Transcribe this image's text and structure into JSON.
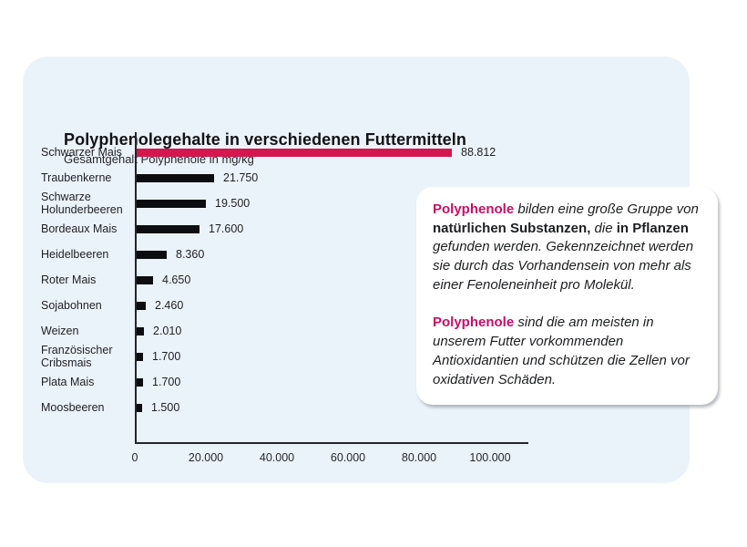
{
  "chart_data": {
    "type": "bar",
    "orientation": "horizontal",
    "title": "Polyphenolegehalte in verschiedenen Futtermitteln",
    "subtitle": "Gesamtgehalt Polyphenole in mg/kg",
    "categories": [
      "Schwarzer Mais",
      "Traubenkerne",
      "Schwarze Holunderbeeren",
      "Bordeaux Mais",
      "Heidelbeeren",
      "Roter Mais",
      "Sojabohnen",
      "Weizen",
      "Französischer Cribsmais",
      "Plata Mais",
      "Moosbeeren"
    ],
    "values": [
      88812,
      21750,
      19500,
      17600,
      8360,
      4650,
      2460,
      2010,
      1700,
      1700,
      1500
    ],
    "value_labels": [
      "88.812",
      "21.750",
      "19.500",
      "17.600",
      "8.360",
      "4.650",
      "2.460",
      "2.010",
      "1.700",
      "1.700",
      "1.500"
    ],
    "highlight_index": 0,
    "xlabel": "",
    "ylabel": "",
    "xlim": [
      0,
      100000
    ],
    "grid": false,
    "legend": "none",
    "xticks": {
      "values": [
        0,
        20000,
        40000,
        60000,
        80000,
        100000
      ],
      "labels": [
        "0",
        "20.000",
        "40.000",
        "60.000",
        "80.000",
        "100.000"
      ]
    },
    "colors": {
      "bar": "#0c0d10",
      "highlight": "#d6164e"
    }
  },
  "infobox": {
    "brand_color": "#ca0d63",
    "paragraphs": [
      [
        {
          "t": "Polyphenole",
          "s": "brand"
        },
        {
          "t": " bilden eine große Gruppe von ",
          "s": "i"
        },
        {
          "t": "natürlichen Substanzen,",
          "s": "b"
        },
        {
          "t": " die ",
          "s": "i"
        },
        {
          "t": "in Pflanzen",
          "s": "b"
        },
        {
          "t": " gefunden werden. Gekennzeichnet werden sie durch das Vorhandensein von mehr als einer Fenoleneinheit pro Molekül.",
          "s": "i"
        }
      ],
      [
        {
          "t": "Polyphenole",
          "s": "brand"
        },
        {
          "t": " sind die am meisten in unserem Futter vorkommenden Antioxidantien und schützen die Zellen vor oxidativen Schäden.",
          "s": "i"
        }
      ]
    ]
  }
}
